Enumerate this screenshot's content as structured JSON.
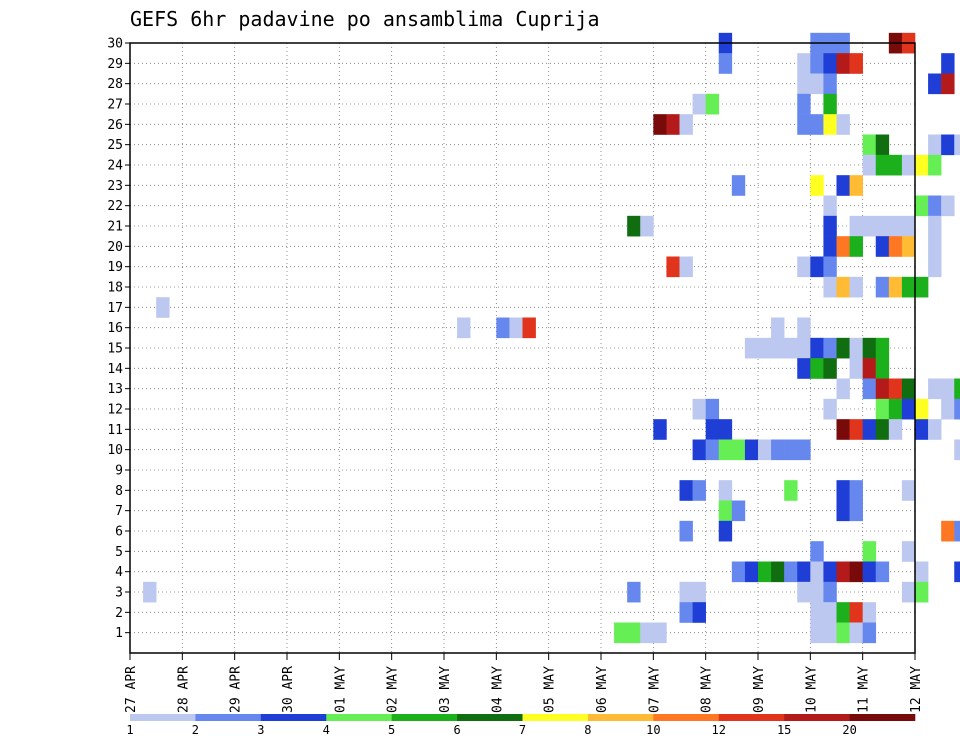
{
  "chart_data": {
    "type": "heatmap",
    "title": "GEFS 6hr padavine po ansamblima Cuprija",
    "xlabel": "",
    "ylabel": "",
    "x_ticks": [
      "27 APR",
      "28 APR",
      "29 APR",
      "30 APR",
      "01 MAY",
      "02 MAY",
      "03 MAY",
      "04 MAY",
      "05 MAY",
      "06 MAY",
      "07 MAY",
      "08 MAY",
      "09 MAY",
      "10 MAY",
      "11 MAY",
      "12 MAY"
    ],
    "y_ticks": [
      1,
      2,
      3,
      4,
      5,
      6,
      7,
      8,
      9,
      10,
      11,
      12,
      13,
      14,
      15,
      16,
      17,
      18,
      19,
      20,
      21,
      22,
      23,
      24,
      25,
      26,
      27,
      28,
      29,
      30
    ],
    "steps_per_day": 4,
    "grid": true,
    "colorbar": {
      "position": "bottom",
      "levels": [
        "1",
        "2",
        "3",
        "4",
        "5",
        "6",
        "7",
        "8",
        "10",
        "12",
        "15",
        "20"
      ],
      "colors": [
        "#bcc8f0",
        "#6688ee",
        "#1e3ed6",
        "#66ee55",
        "#1cb01c",
        "#106e10",
        "#ffff22",
        "#ffbb33",
        "#ff7722",
        "#e0341c",
        "#b41a1a",
        "#780a0a"
      ]
    },
    "cells": [
      [
        30,
        45,
        3
      ],
      [
        30,
        52,
        2
      ],
      [
        30,
        53,
        2
      ],
      [
        30,
        54,
        2
      ],
      [
        30,
        58,
        12
      ],
      [
        30,
        59,
        10
      ],
      [
        30,
        68,
        1
      ],
      [
        30,
        77,
        4
      ],
      [
        30,
        81,
        2
      ],
      [
        30,
        82,
        3
      ],
      [
        30,
        83,
        2
      ],
      [
        30,
        98,
        1
      ],
      [
        30,
        99,
        1
      ],
      [
        30,
        100,
        1
      ],
      [
        29,
        45,
        2
      ],
      [
        29,
        51,
        1
      ],
      [
        29,
        52,
        2
      ],
      [
        29,
        53,
        3
      ],
      [
        29,
        54,
        11
      ],
      [
        29,
        55,
        10
      ],
      [
        29,
        62,
        3
      ],
      [
        29,
        66,
        2
      ],
      [
        29,
        67,
        1
      ],
      [
        29,
        82,
        4
      ],
      [
        29,
        99,
        2
      ],
      [
        28,
        51,
        1
      ],
      [
        28,
        52,
        1
      ],
      [
        28,
        53,
        2
      ],
      [
        28,
        61,
        3
      ],
      [
        28,
        62,
        11
      ],
      [
        28,
        105,
        1
      ],
      [
        27,
        43,
        1
      ],
      [
        27,
        44,
        4
      ],
      [
        27,
        51,
        2
      ],
      [
        27,
        53,
        5
      ],
      [
        27,
        64,
        1
      ],
      [
        27,
        68,
        1
      ],
      [
        27,
        99,
        1
      ],
      [
        26,
        40,
        12
      ],
      [
        26,
        41,
        11
      ],
      [
        26,
        42,
        1
      ],
      [
        26,
        51,
        2
      ],
      [
        26,
        52,
        2
      ],
      [
        26,
        53,
        7
      ],
      [
        26,
        54,
        1
      ],
      [
        26,
        99,
        3
      ],
      [
        26,
        100,
        3
      ],
      [
        26,
        101,
        4
      ],
      [
        26,
        102,
        1
      ],
      [
        25,
        56,
        4
      ],
      [
        25,
        57,
        6
      ],
      [
        25,
        61,
        1
      ],
      [
        25,
        62,
        3
      ],
      [
        25,
        63,
        1
      ],
      [
        25,
        64,
        3
      ],
      [
        25,
        70,
        1
      ],
      [
        24,
        56,
        1
      ],
      [
        24,
        57,
        5
      ],
      [
        24,
        58,
        5
      ],
      [
        24,
        59,
        1
      ],
      [
        24,
        60,
        7
      ],
      [
        24,
        61,
        4
      ],
      [
        24,
        68,
        1
      ],
      [
        23,
        46,
        2
      ],
      [
        23,
        52,
        7
      ],
      [
        23,
        54,
        3
      ],
      [
        23,
        55,
        8
      ],
      [
        23,
        64,
        1
      ],
      [
        23,
        92,
        1
      ],
      [
        22,
        53,
        1
      ],
      [
        22,
        60,
        4
      ],
      [
        22,
        61,
        2
      ],
      [
        22,
        62,
        1
      ],
      [
        22,
        67,
        1
      ],
      [
        22,
        71,
        2
      ],
      [
        22,
        72,
        2
      ],
      [
        21,
        38,
        6
      ],
      [
        21,
        39,
        1
      ],
      [
        21,
        53,
        3
      ],
      [
        21,
        55,
        1
      ],
      [
        21,
        56,
        1
      ],
      [
        21,
        57,
        1
      ],
      [
        21,
        58,
        1
      ],
      [
        21,
        59,
        1
      ],
      [
        21,
        61,
        1
      ],
      [
        20,
        53,
        3
      ],
      [
        20,
        54,
        9
      ],
      [
        20,
        55,
        5
      ],
      [
        20,
        57,
        3
      ],
      [
        20,
        58,
        9
      ],
      [
        20,
        59,
        8
      ],
      [
        20,
        61,
        1
      ],
      [
        20,
        65,
        1
      ],
      [
        20,
        100,
        1
      ],
      [
        20,
        106,
        3
      ],
      [
        19,
        41,
        10
      ],
      [
        19,
        42,
        1
      ],
      [
        19,
        51,
        1
      ],
      [
        19,
        52,
        3
      ],
      [
        19,
        53,
        2
      ],
      [
        19,
        61,
        1
      ],
      [
        19,
        68,
        1
      ],
      [
        18,
        53,
        1
      ],
      [
        18,
        54,
        8
      ],
      [
        18,
        55,
        1
      ],
      [
        18,
        57,
        2
      ],
      [
        18,
        58,
        8
      ],
      [
        18,
        59,
        5
      ],
      [
        18,
        60,
        5
      ],
      [
        18,
        94,
        3
      ],
      [
        18,
        100,
        1
      ],
      [
        18,
        103,
        1
      ],
      [
        17,
        2,
        1
      ],
      [
        17,
        66,
        1
      ],
      [
        17,
        99,
        1
      ],
      [
        17,
        100,
        3
      ],
      [
        16,
        25,
        1
      ],
      [
        16,
        28,
        2
      ],
      [
        16,
        29,
        1
      ],
      [
        16,
        30,
        10
      ],
      [
        16,
        49,
        1
      ],
      [
        16,
        51,
        1
      ],
      [
        16,
        64,
        5
      ],
      [
        16,
        65,
        2
      ],
      [
        16,
        67,
        1
      ],
      [
        16,
        71,
        2
      ],
      [
        16,
        72,
        2
      ],
      [
        16,
        73,
        3
      ],
      [
        16,
        74,
        1
      ],
      [
        16,
        75,
        3
      ],
      [
        16,
        76,
        2
      ],
      [
        16,
        77,
        3
      ],
      [
        16,
        99,
        1
      ],
      [
        16,
        100,
        2
      ],
      [
        16,
        101,
        1
      ],
      [
        16,
        102,
        3
      ],
      [
        15,
        47,
        1
      ],
      [
        15,
        48,
        1
      ],
      [
        15,
        49,
        1
      ],
      [
        15,
        50,
        1
      ],
      [
        15,
        51,
        1
      ],
      [
        15,
        52,
        3
      ],
      [
        15,
        53,
        2
      ],
      [
        15,
        54,
        6
      ],
      [
        15,
        55,
        1
      ],
      [
        15,
        56,
        6
      ],
      [
        15,
        57,
        5
      ],
      [
        15,
        67,
        1
      ],
      [
        15,
        72,
        1
      ],
      [
        15,
        76,
        1
      ],
      [
        15,
        99,
        1
      ],
      [
        14,
        51,
        3
      ],
      [
        14,
        52,
        5
      ],
      [
        14,
        53,
        6
      ],
      [
        14,
        55,
        1
      ],
      [
        14,
        56,
        11
      ],
      [
        14,
        57,
        5
      ],
      [
        14,
        69,
        1
      ],
      [
        14,
        87,
        1
      ],
      [
        13,
        54,
        1
      ],
      [
        13,
        56,
        2
      ],
      [
        13,
        57,
        11
      ],
      [
        13,
        58,
        10
      ],
      [
        13,
        59,
        6
      ],
      [
        13,
        61,
        1
      ],
      [
        13,
        62,
        1
      ],
      [
        13,
        63,
        5
      ],
      [
        13,
        64,
        9
      ],
      [
        13,
        69,
        1
      ],
      [
        13,
        71,
        2
      ],
      [
        13,
        72,
        1
      ],
      [
        13,
        100,
        3
      ],
      [
        13,
        105,
        2
      ],
      [
        12,
        43,
        1
      ],
      [
        12,
        44,
        2
      ],
      [
        12,
        53,
        1
      ],
      [
        12,
        57,
        4
      ],
      [
        12,
        58,
        5
      ],
      [
        12,
        59,
        3
      ],
      [
        12,
        60,
        7
      ],
      [
        12,
        62,
        1
      ],
      [
        12,
        63,
        2
      ],
      [
        12,
        64,
        4
      ],
      [
        12,
        67,
        1
      ],
      [
        12,
        68,
        2
      ],
      [
        12,
        71,
        1
      ],
      [
        12,
        72,
        2
      ],
      [
        12,
        83,
        6
      ],
      [
        12,
        84,
        3
      ],
      [
        12,
        86,
        1
      ],
      [
        12,
        87,
        2
      ],
      [
        12,
        88,
        5
      ],
      [
        12,
        89,
        7
      ],
      [
        12,
        114,
        11
      ],
      [
        12,
        115,
        10
      ],
      [
        11,
        40,
        3
      ],
      [
        11,
        44,
        3
      ],
      [
        11,
        45,
        3
      ],
      [
        11,
        54,
        12
      ],
      [
        11,
        55,
        10
      ],
      [
        11,
        56,
        3
      ],
      [
        11,
        57,
        6
      ],
      [
        11,
        58,
        1
      ],
      [
        11,
        60,
        3
      ],
      [
        11,
        61,
        1
      ],
      [
        11,
        81,
        1
      ],
      [
        11,
        82,
        2
      ],
      [
        11,
        83,
        3
      ],
      [
        11,
        84,
        2
      ],
      [
        11,
        85,
        10
      ],
      [
        11,
        86,
        2
      ],
      [
        11,
        87,
        12
      ],
      [
        11,
        88,
        5
      ],
      [
        11,
        110,
        3
      ],
      [
        11,
        111,
        2
      ],
      [
        10,
        43,
        3
      ],
      [
        10,
        44,
        2
      ],
      [
        10,
        45,
        4
      ],
      [
        10,
        46,
        4
      ],
      [
        10,
        47,
        3
      ],
      [
        10,
        48,
        1
      ],
      [
        10,
        49,
        2
      ],
      [
        10,
        50,
        2
      ],
      [
        10,
        51,
        2
      ],
      [
        10,
        63,
        1
      ],
      [
        10,
        64,
        6
      ],
      [
        9,
        64,
        11
      ],
      [
        9,
        65,
        2
      ],
      [
        9,
        105,
        3
      ],
      [
        9,
        106,
        1
      ],
      [
        9,
        111,
        2
      ],
      [
        8,
        42,
        3
      ],
      [
        8,
        43,
        2
      ],
      [
        8,
        45,
        1
      ],
      [
        8,
        50,
        4
      ],
      [
        8,
        54,
        3
      ],
      [
        8,
        55,
        2
      ],
      [
        8,
        59,
        1
      ],
      [
        7,
        45,
        4
      ],
      [
        7,
        46,
        2
      ],
      [
        7,
        54,
        3
      ],
      [
        7,
        55,
        2
      ],
      [
        7,
        79,
        1
      ],
      [
        7,
        80,
        4
      ],
      [
        7,
        81,
        9
      ],
      [
        7,
        82,
        2
      ],
      [
        7,
        83,
        6
      ],
      [
        7,
        84,
        2
      ],
      [
        6,
        42,
        2
      ],
      [
        6,
        45,
        3
      ],
      [
        6,
        62,
        9
      ],
      [
        6,
        63,
        2
      ],
      [
        6,
        81,
        1
      ],
      [
        6,
        82,
        8
      ],
      [
        6,
        83,
        1
      ],
      [
        6,
        86,
        2
      ],
      [
        6,
        89,
        2
      ],
      [
        6,
        94,
        1
      ],
      [
        5,
        52,
        2
      ],
      [
        5,
        56,
        4
      ],
      [
        5,
        59,
        1
      ],
      [
        5,
        67,
        1
      ],
      [
        5,
        68,
        2
      ],
      [
        5,
        69,
        4
      ],
      [
        5,
        70,
        3
      ],
      [
        5,
        71,
        1
      ],
      [
        5,
        74,
        1
      ],
      [
        5,
        76,
        1
      ],
      [
        5,
        81,
        2
      ],
      [
        5,
        82,
        1
      ],
      [
        5,
        89,
        1
      ],
      [
        5,
        92,
        1
      ],
      [
        4,
        46,
        2
      ],
      [
        4,
        47,
        3
      ],
      [
        4,
        48,
        5
      ],
      [
        4,
        49,
        6
      ],
      [
        4,
        50,
        2
      ],
      [
        4,
        51,
        3
      ],
      [
        4,
        52,
        1
      ],
      [
        4,
        53,
        3
      ],
      [
        4,
        54,
        11
      ],
      [
        4,
        55,
        12
      ],
      [
        4,
        56,
        3
      ],
      [
        4,
        57,
        2
      ],
      [
        4,
        60,
        1
      ],
      [
        4,
        63,
        3
      ],
      [
        4,
        64,
        3
      ],
      [
        4,
        66,
        4
      ],
      [
        4,
        67,
        1
      ],
      [
        4,
        82,
        6
      ],
      [
        4,
        88,
        2
      ],
      [
        4,
        89,
        3
      ],
      [
        4,
        93,
        1
      ],
      [
        4,
        94,
        1
      ],
      [
        4,
        114,
        4
      ],
      [
        3,
        1,
        1
      ],
      [
        3,
        38,
        2
      ],
      [
        3,
        42,
        1
      ],
      [
        3,
        43,
        1
      ],
      [
        3,
        51,
        1
      ],
      [
        3,
        52,
        1
      ],
      [
        3,
        53,
        2
      ],
      [
        3,
        59,
        1
      ],
      [
        3,
        60,
        4
      ],
      [
        3,
        65,
        1
      ],
      [
        3,
        92,
        4
      ],
      [
        3,
        93,
        2
      ],
      [
        2,
        42,
        2
      ],
      [
        2,
        43,
        3
      ],
      [
        2,
        52,
        1
      ],
      [
        2,
        53,
        1
      ],
      [
        2,
        54,
        5
      ],
      [
        2,
        55,
        10
      ],
      [
        2,
        56,
        1
      ],
      [
        1,
        37,
        4
      ],
      [
        1,
        38,
        4
      ],
      [
        1,
        39,
        1
      ],
      [
        1,
        40,
        1
      ],
      [
        1,
        52,
        1
      ],
      [
        1,
        53,
        1
      ],
      [
        1,
        54,
        4
      ],
      [
        1,
        55,
        1
      ],
      [
        1,
        56,
        2
      ],
      [
        1,
        109,
        7
      ],
      [
        1,
        110,
        10
      ]
    ]
  }
}
